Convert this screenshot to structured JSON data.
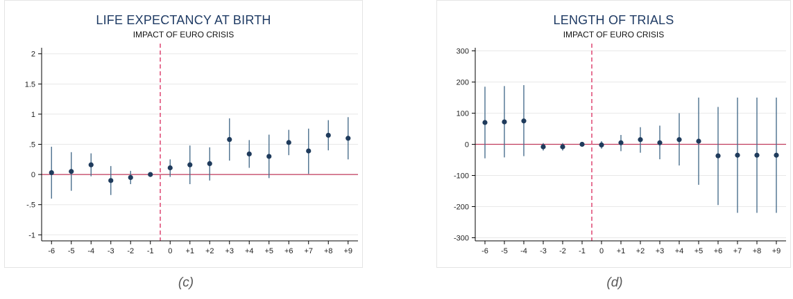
{
  "chart_data": [
    {
      "type": "scatter",
      "title": "LIFE EXPECTANCY AT BIRTH",
      "subtitle": "IMPACT OF EURO CRISIS",
      "xlabel": "",
      "ylabel": "",
      "categories": [
        "-6",
        "-5",
        "-4",
        "-3",
        "-2",
        "-1",
        "0",
        "+1",
        "+2",
        "+3",
        "+4",
        "+5",
        "+6",
        "+7",
        "+8",
        "+9"
      ],
      "values": [
        0.03,
        0.05,
        0.16,
        -0.1,
        -0.05,
        0.0,
        0.11,
        0.16,
        0.18,
        0.58,
        0.34,
        0.3,
        0.53,
        0.39,
        0.65,
        0.6
      ],
      "ci_low": [
        -0.4,
        -0.27,
        -0.03,
        -0.34,
        -0.16,
        0.0,
        -0.04,
        -0.16,
        -0.1,
        0.23,
        0.11,
        -0.06,
        0.32,
        0.01,
        0.4,
        0.25
      ],
      "ci_high": [
        0.46,
        0.37,
        0.35,
        0.14,
        0.06,
        0.0,
        0.25,
        0.48,
        0.45,
        0.93,
        0.57,
        0.66,
        0.74,
        0.76,
        0.9,
        0.95
      ],
      "yticks": [
        -1,
        -0.5,
        0,
        0.5,
        1,
        1.5,
        2
      ],
      "ytick_labels": [
        "-1",
        "-.5",
        "0",
        ".5",
        "1",
        "1.5",
        "2"
      ],
      "ylim": [
        -1.1,
        2.1
      ],
      "vline_between": [
        "-1",
        "0"
      ],
      "hline": 0,
      "grid": true,
      "colors": {
        "point": "#1f3b5c",
        "ci": "#4a6f8d",
        "zero_line": "#c0395b",
        "vline": "#e0507a",
        "grid": "#e8e8e8"
      },
      "caption": "(c)"
    },
    {
      "type": "scatter",
      "title": "LENGTH OF TRIALS",
      "subtitle": "IMPACT OF EURO CRISIS",
      "xlabel": "",
      "ylabel": "",
      "categories": [
        "-6",
        "-5",
        "-4",
        "-3",
        "-2",
        "-1",
        "0",
        "+1",
        "+2",
        "+3",
        "+4",
        "+5",
        "+6",
        "+7",
        "+8",
        "+9"
      ],
      "values": [
        70,
        72,
        75,
        -8,
        -8,
        0,
        -2,
        5,
        15,
        5,
        15,
        10,
        -37,
        -35,
        -35,
        -35
      ],
      "ci_low": [
        -45,
        -42,
        -38,
        -20,
        -20,
        0,
        -14,
        -22,
        -27,
        -48,
        -68,
        -130,
        -195,
        -220,
        -220,
        -220
      ],
      "ci_high": [
        185,
        187,
        190,
        4,
        4,
        0,
        10,
        30,
        55,
        60,
        100,
        150,
        120,
        150,
        150,
        150
      ],
      "yticks": [
        -300,
        -200,
        -100,
        0,
        100,
        200,
        300
      ],
      "ytick_labels": [
        "-300",
        "-200",
        "-100",
        "0",
        "100",
        "200",
        "300"
      ],
      "ylim": [
        -310,
        310
      ],
      "vline_between": [
        "-1",
        "0"
      ],
      "hline": 0,
      "grid": true,
      "colors": {
        "point": "#1f3b5c",
        "ci": "#4a6f8d",
        "zero_line": "#c0395b",
        "vline": "#e0507a",
        "grid": "#e8e8e8"
      },
      "caption": "(d)"
    }
  ]
}
